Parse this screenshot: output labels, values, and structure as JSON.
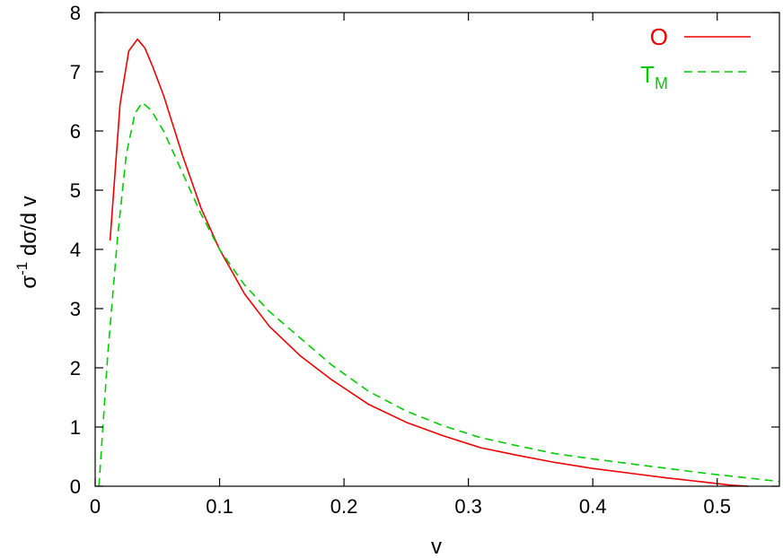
{
  "chart_data": {
    "type": "line",
    "xlabel": "v",
    "ylabel_main": "σ",
    "ylabel_sup": "-1",
    "ylabel_rest": " dσ/d v",
    "xlim": [
      0,
      0.55
    ],
    "ylim": [
      0,
      8
    ],
    "xticks": [
      0,
      0.1,
      0.2,
      0.3,
      0.4,
      0.5
    ],
    "xtick_labels": [
      "0",
      "0.1",
      "0.2",
      "0.3",
      "0.4",
      "0.5"
    ],
    "yticks": [
      0,
      1,
      2,
      3,
      4,
      5,
      6,
      7,
      8
    ],
    "ytick_labels": [
      "0",
      "1",
      "2",
      "3",
      "4",
      "5",
      "6",
      "7",
      "8"
    ],
    "grid": false,
    "legend_position": "top-right",
    "series": [
      {
        "name": "O",
        "name_sub": "",
        "color": "#ee0000",
        "dash": "solid",
        "x": [
          0.012,
          0.02,
          0.027,
          0.034,
          0.04,
          0.046,
          0.055,
          0.07,
          0.085,
          0.1,
          0.12,
          0.14,
          0.165,
          0.19,
          0.22,
          0.25,
          0.28,
          0.31,
          0.34,
          0.37,
          0.4,
          0.43,
          0.46,
          0.49,
          0.51,
          0.525
        ],
        "y": [
          4.15,
          6.45,
          7.35,
          7.55,
          7.4,
          7.1,
          6.6,
          5.6,
          4.7,
          4.0,
          3.25,
          2.7,
          2.2,
          1.8,
          1.38,
          1.08,
          0.85,
          0.65,
          0.52,
          0.4,
          0.3,
          0.22,
          0.14,
          0.07,
          0.02,
          0.0
        ]
      },
      {
        "name": "T",
        "name_sub": "M",
        "color": "#00cc00",
        "dash": "dashed",
        "x": [
          0.003,
          0.01,
          0.018,
          0.025,
          0.032,
          0.038,
          0.045,
          0.055,
          0.07,
          0.085,
          0.1,
          0.12,
          0.14,
          0.165,
          0.19,
          0.22,
          0.25,
          0.28,
          0.31,
          0.34,
          0.37,
          0.4,
          0.43,
          0.46,
          0.49,
          0.52,
          0.55
        ],
        "y": [
          0.0,
          2.2,
          4.2,
          5.6,
          6.3,
          6.48,
          6.35,
          6.0,
          5.3,
          4.6,
          4.0,
          3.4,
          2.95,
          2.5,
          2.05,
          1.6,
          1.27,
          1.02,
          0.82,
          0.68,
          0.55,
          0.46,
          0.38,
          0.3,
          0.22,
          0.15,
          0.08
        ]
      }
    ]
  }
}
